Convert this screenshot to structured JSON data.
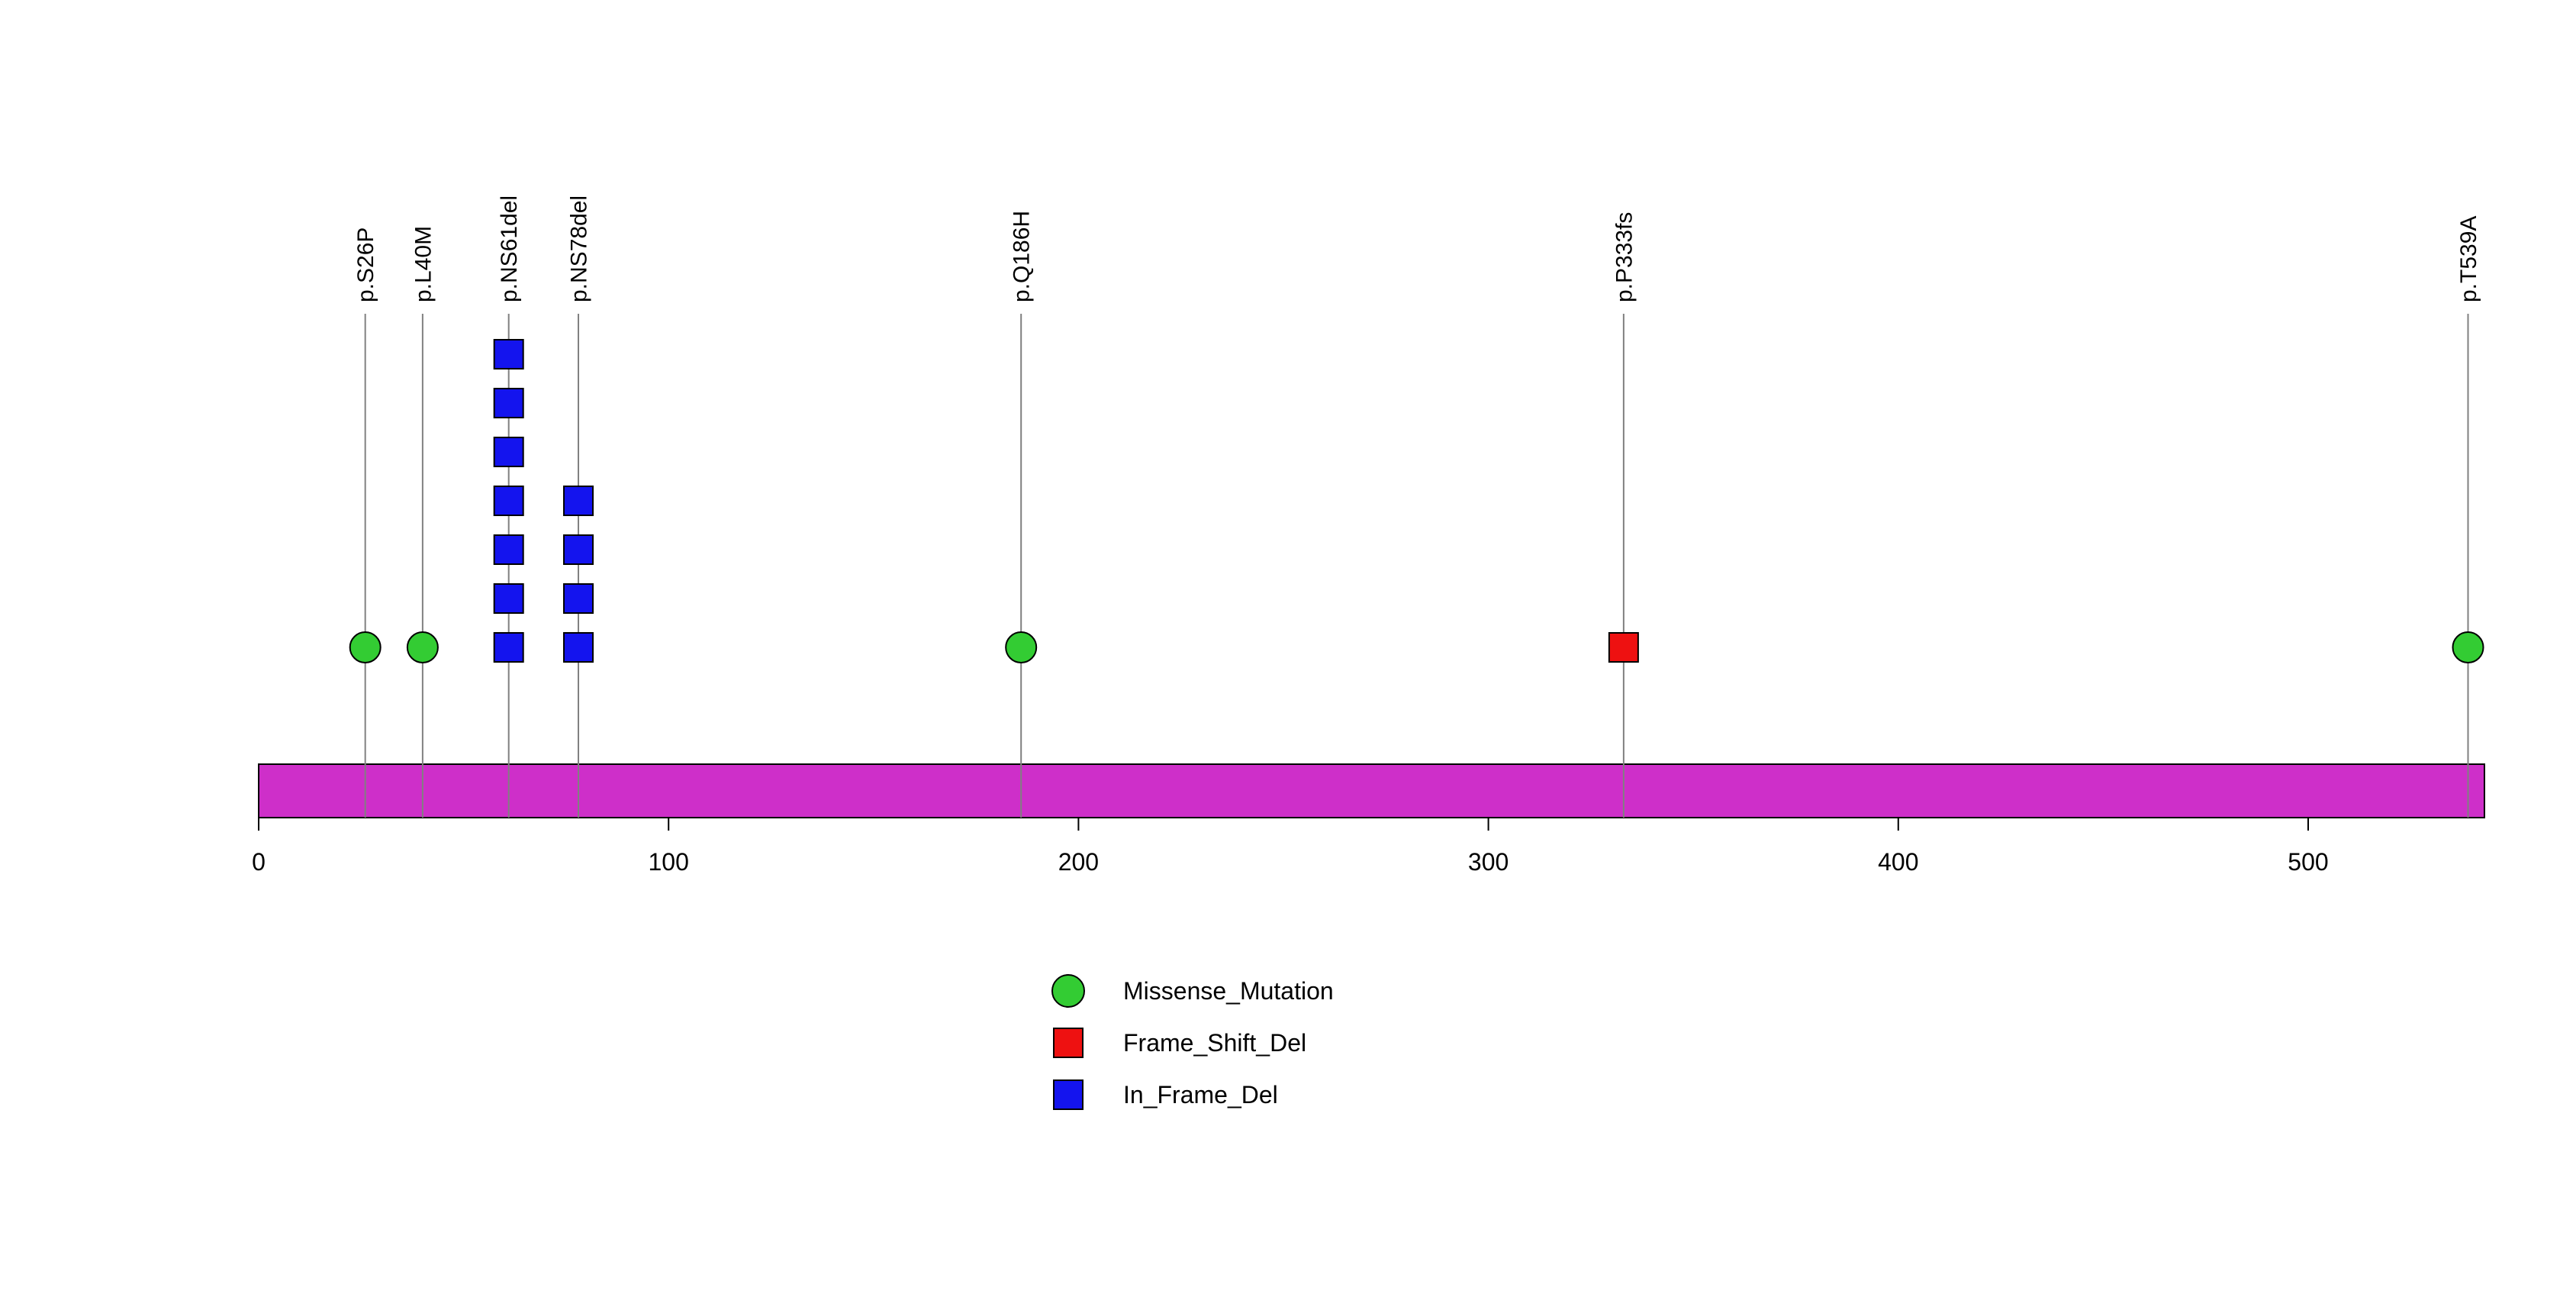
{
  "page": {
    "background": "#ffffff"
  },
  "chart_data": {
    "type": "lollipop",
    "title": "",
    "xlabel": "",
    "ylabel": "",
    "xlim": [
      0,
      543
    ],
    "x_ticks": [
      0,
      100,
      200,
      300,
      400,
      500
    ],
    "grid": false,
    "legend_position": "bottom-center",
    "protein_domain": {
      "start": 0,
      "end": 543,
      "color": "#CE2FC9",
      "border_color": "#000000"
    },
    "stem_color": "#808080",
    "mutation_types": {
      "Missense_Mutation": {
        "shape": "circle",
        "color": "#33CC33"
      },
      "Frame_Shift_Del": {
        "shape": "square",
        "color": "#EE1111"
      },
      "In_Frame_Del": {
        "shape": "square",
        "color": "#1414EE"
      }
    },
    "mutations": [
      {
        "label": "p.S26P",
        "position": 26,
        "count": 1,
        "type": "Missense_Mutation"
      },
      {
        "label": "p.L40M",
        "position": 40,
        "count": 1,
        "type": "Missense_Mutation"
      },
      {
        "label": "p.NS61del",
        "position": 61,
        "count": 7,
        "type": "In_Frame_Del"
      },
      {
        "label": "p.NS78del",
        "position": 78,
        "count": 4,
        "type": "In_Frame_Del"
      },
      {
        "label": "p.Q186H",
        "position": 186,
        "count": 1,
        "type": "Missense_Mutation"
      },
      {
        "label": "p.P333fs",
        "position": 333,
        "count": 1,
        "type": "Frame_Shift_Del"
      },
      {
        "label": "p.T539A",
        "position": 539,
        "count": 1,
        "type": "Missense_Mutation"
      }
    ],
    "legend": [
      {
        "label": "Missense_Mutation",
        "type": "Missense_Mutation"
      },
      {
        "label": "Frame_Shift_Del",
        "type": "Frame_Shift_Del"
      },
      {
        "label": "In_Frame_Del",
        "type": "In_Frame_Del"
      }
    ]
  }
}
